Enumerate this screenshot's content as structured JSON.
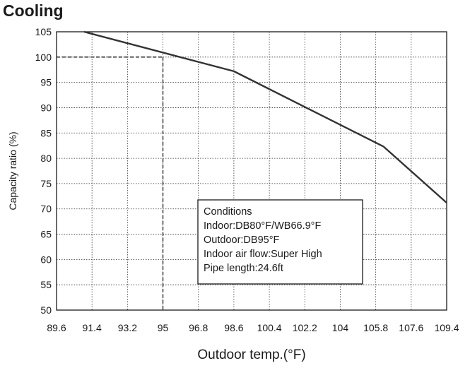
{
  "chart_data": {
    "type": "line",
    "title": "Cooling",
    "xlabel": "Outdoor temp.(°F)",
    "ylabel": "Capacity ratio (%)",
    "x_ticks": [
      "89.6",
      "91.4",
      "93.2",
      "95",
      "96.8",
      "98.6",
      "100.4",
      "102.2",
      "104",
      "105.8",
      "107.6",
      "109.4"
    ],
    "y_ticks": [
      "50",
      "55",
      "60",
      "65",
      "70",
      "75",
      "80",
      "85",
      "90",
      "95",
      "100",
      "105"
    ],
    "xlim": [
      89.6,
      109.4
    ],
    "ylim": [
      50,
      105
    ],
    "grid": true,
    "series": [
      {
        "x": [
          91.0,
          98.6,
          106.2,
          109.4
        ],
        "y": [
          105,
          97.2,
          82.3,
          71.2
        ]
      }
    ],
    "reference": {
      "x": 95,
      "y": 100
    },
    "conditions": [
      "Conditions",
      "Indoor:DB80°F/WB66.9°F",
      "Outdoor:DB95°F",
      "Indoor air flow:Super High",
      "Pipe length:24.6ft"
    ]
  }
}
